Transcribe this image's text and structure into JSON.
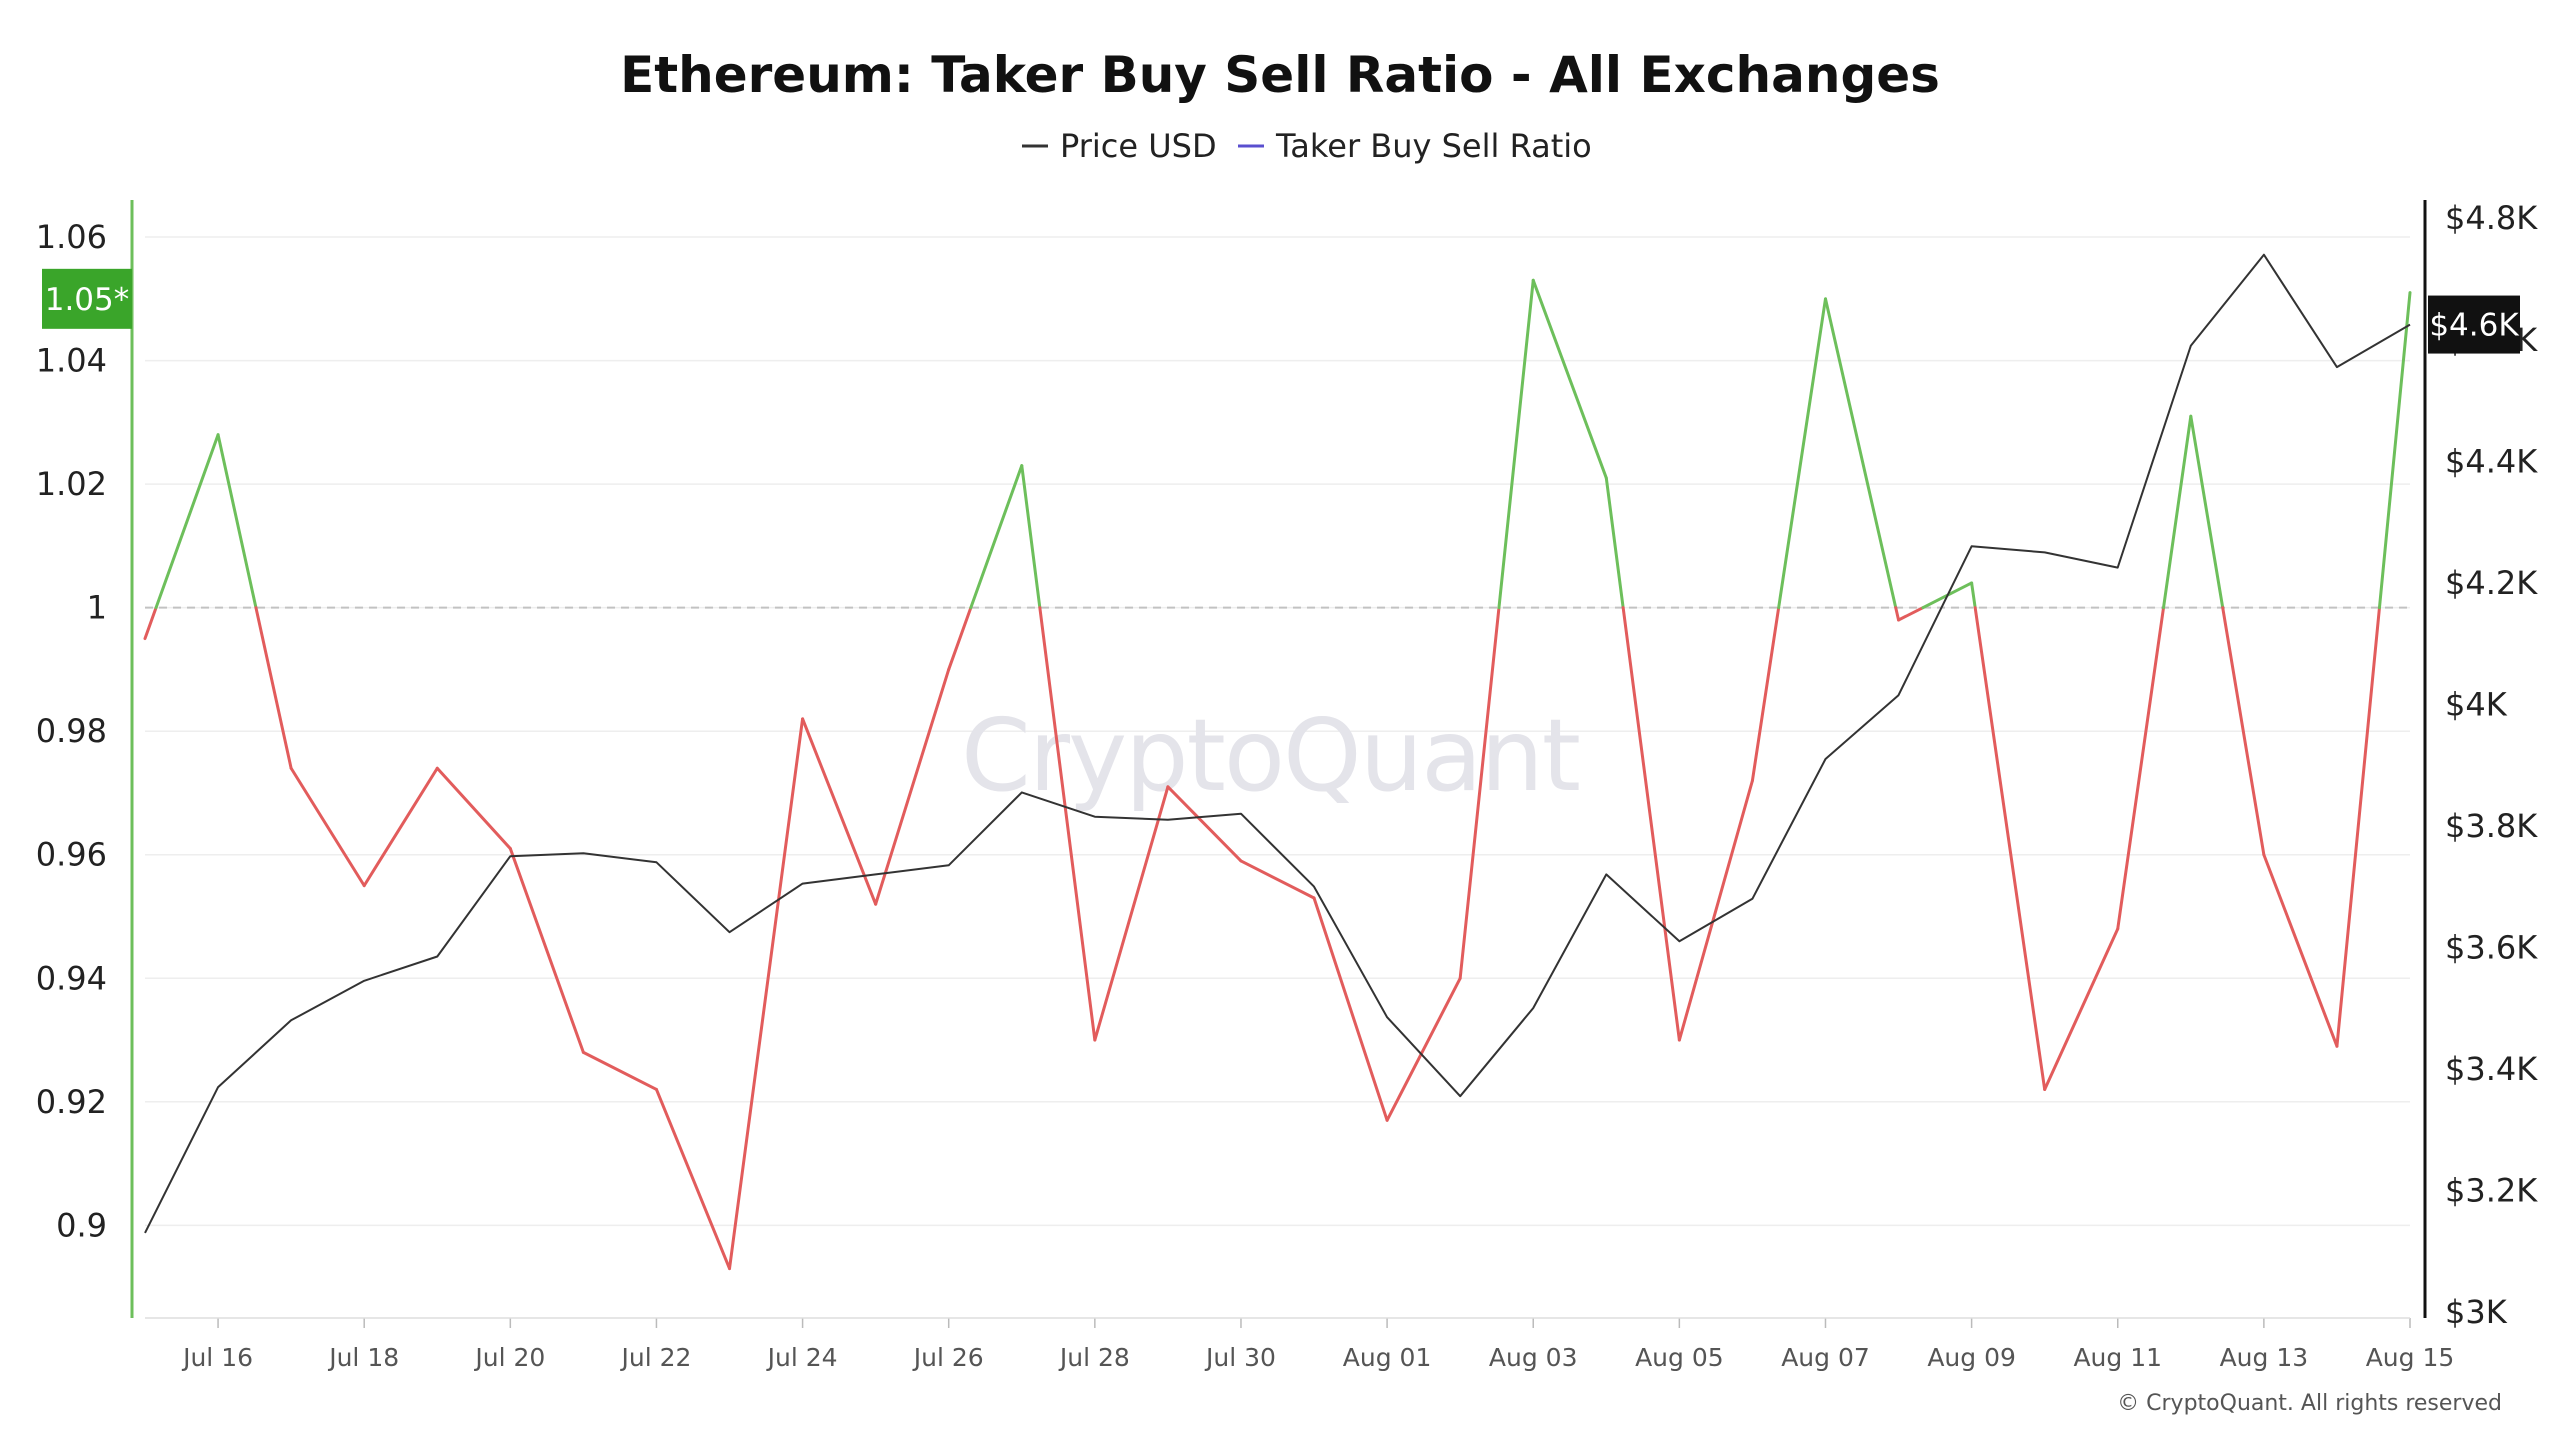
{
  "chart_data": {
    "type": "line",
    "title": "Ethereum: Taker Buy Sell Ratio - All Exchanges",
    "legend": {
      "placement": "top-center",
      "entries": [
        {
          "label": "Price USD",
          "color": "#333333"
        },
        {
          "label": "Taker Buy Sell Ratio",
          "color": "#5a4fcf"
        }
      ]
    },
    "x_tick_labels": [
      "Jul 16",
      "Jul 18",
      "Jul 20",
      "Jul 22",
      "Jul 24",
      "Jul 26",
      "Jul 28",
      "Jul 30",
      "Aug 01",
      "Aug 03",
      "Aug 05",
      "Aug 07",
      "Aug 09",
      "Aug 11",
      "Aug 13",
      "Aug 15"
    ],
    "x_tick_dates": [
      "2025-07-16",
      "2025-07-18",
      "2025-07-20",
      "2025-07-22",
      "2025-07-24",
      "2025-07-26",
      "2025-07-28",
      "2025-07-30",
      "2025-08-01",
      "2025-08-03",
      "2025-08-05",
      "2025-08-07",
      "2025-08-09",
      "2025-08-11",
      "2025-08-13",
      "2025-08-15"
    ],
    "x": [
      "2025-07-15",
      "2025-07-16",
      "2025-07-17",
      "2025-07-18",
      "2025-07-19",
      "2025-07-20",
      "2025-07-21",
      "2025-07-22",
      "2025-07-23",
      "2025-07-24",
      "2025-07-25",
      "2025-07-26",
      "2025-07-27",
      "2025-07-28",
      "2025-07-29",
      "2025-07-30",
      "2025-07-31",
      "2025-08-01",
      "2025-08-02",
      "2025-08-03",
      "2025-08-04",
      "2025-08-05",
      "2025-08-06",
      "2025-08-07",
      "2025-08-08",
      "2025-08-09",
      "2025-08-10",
      "2025-08-11",
      "2025-08-12",
      "2025-08-13",
      "2025-08-14",
      "2025-08-15"
    ],
    "series": [
      {
        "name": "Taker Buy Sell Ratio",
        "axis": "left",
        "color_above": "#6dbf5b",
        "color_below": "#e25c5c",
        "threshold": 1,
        "values": [
          0.995,
          1.028,
          0.974,
          0.955,
          0.974,
          0.961,
          0.928,
          0.922,
          0.893,
          0.982,
          0.952,
          0.99,
          1.023,
          0.93,
          0.971,
          0.959,
          0.953,
          0.917,
          0.94,
          1.053,
          1.021,
          0.93,
          0.972,
          1.05,
          0.998,
          1.004,
          0.922,
          0.948,
          1.031,
          0.96,
          0.929,
          1.051
        ]
      },
      {
        "name": "Price USD",
        "axis": "right",
        "color": "#333333",
        "values": [
          3130,
          3370,
          3480,
          3545,
          3585,
          3750,
          3755,
          3740,
          3625,
          3705,
          3720,
          3735,
          3855,
          3815,
          3810,
          3820,
          3700,
          3485,
          3355,
          3500,
          3720,
          3610,
          3680,
          3910,
          4015,
          4260,
          4250,
          4225,
          4590,
          4740,
          4555,
          4625
        ]
      }
    ],
    "left_axis": {
      "ticks": [
        0.9,
        0.92,
        0.94,
        0.96,
        0.98,
        1,
        1.02,
        1.04,
        1.06
      ],
      "tick_labels": [
        "0.9",
        "0.92",
        "0.94",
        "0.96",
        "0.98",
        "1",
        "1.02",
        "1.04",
        "1.06"
      ],
      "ylim": [
        0.885,
        1.066
      ]
    },
    "right_axis": {
      "ticks": [
        3000,
        3200,
        3400,
        3600,
        3800,
        4000,
        4200,
        4400,
        4600,
        4800
      ],
      "tick_labels": [
        "$3K",
        "$3.2K",
        "$3.4K",
        "$3.6K",
        "$3.8K",
        "$4K",
        "$4.2K",
        "$4.4K",
        "$4.6K",
        "$4.8K"
      ],
      "ylim": [
        2990,
        4830
      ]
    },
    "reference_line": {
      "axis": "left",
      "value": 1,
      "style": "dashed"
    },
    "current_value_badges": [
      {
        "axis": "left",
        "label": "1.05*",
        "value": 1.05,
        "color": "#3aa52a"
      },
      {
        "axis": "right",
        "label": "$4.6K",
        "value": 4625,
        "color": "#111111"
      }
    ],
    "grid": true,
    "watermark": "CryptoQuant",
    "copyright": "© CryptoQuant. All rights reserved"
  }
}
